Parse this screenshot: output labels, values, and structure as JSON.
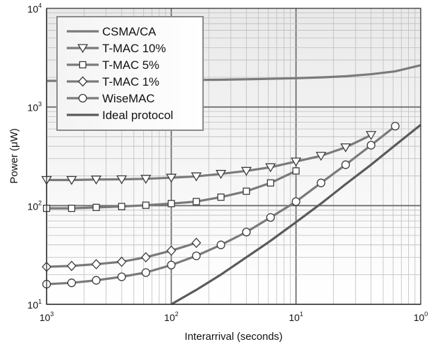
{
  "chart_data": {
    "type": "line",
    "xlabel": "Interarrival (seconds)",
    "ylabel": "Power (μW)",
    "x_scale": "log",
    "y_scale": "log",
    "x_reversed": true,
    "xlim": [
      1000,
      1
    ],
    "ylim": [
      10,
      10000
    ],
    "grid": true,
    "legend": "top-left",
    "x_ticks": [
      {
        "base": "10",
        "exp": "3",
        "value": 1000
      },
      {
        "base": "10",
        "exp": "2",
        "value": 100
      },
      {
        "base": "10",
        "exp": "1",
        "value": 10
      },
      {
        "base": "10",
        "exp": "0",
        "value": 1
      }
    ],
    "y_ticks": [
      {
        "base": "10",
        "exp": "4",
        "value": 10000
      },
      {
        "base": "10",
        "exp": "3",
        "value": 1000
      },
      {
        "base": "10",
        "exp": "2",
        "value": 100
      },
      {
        "base": "10",
        "exp": "1",
        "value": 10
      }
    ],
    "series": [
      {
        "name": "CSMA/CA",
        "marker": "none",
        "color": "#7a7a7a",
        "points": [
          [
            1000,
            1840
          ],
          [
            250,
            1850
          ],
          [
            100,
            1870
          ],
          [
            40,
            1890
          ],
          [
            20,
            1920
          ],
          [
            10,
            1960
          ],
          [
            6,
            2000
          ],
          [
            4,
            2050
          ],
          [
            2.5,
            2150
          ],
          [
            1.6,
            2300
          ],
          [
            1,
            2650
          ]
        ]
      },
      {
        "name": "T-MAC 10%",
        "marker": "triangle-down",
        "color": "#7a7a7a",
        "points": [
          [
            1000,
            182
          ],
          [
            630,
            182
          ],
          [
            400,
            184
          ],
          [
            250,
            185
          ],
          [
            160,
            187
          ],
          [
            100,
            192
          ],
          [
            63,
            198
          ],
          [
            40,
            210
          ],
          [
            25,
            225
          ],
          [
            16,
            245
          ],
          [
            10,
            280
          ],
          [
            6.3,
            320
          ],
          [
            4,
            390
          ],
          [
            2.5,
            520
          ]
        ]
      },
      {
        "name": "T-MAC 5%",
        "marker": "square",
        "color": "#7a7a7a",
        "points": [
          [
            1000,
            94
          ],
          [
            630,
            94
          ],
          [
            400,
            96
          ],
          [
            250,
            98
          ],
          [
            160,
            101
          ],
          [
            100,
            105
          ],
          [
            63,
            110
          ],
          [
            40,
            122
          ],
          [
            25,
            140
          ],
          [
            16,
            170
          ],
          [
            10,
            225
          ]
        ]
      },
      {
        "name": "T-MAC 1%",
        "marker": "diamond",
        "color": "#7a7a7a",
        "points": [
          [
            1000,
            24
          ],
          [
            630,
            24.5
          ],
          [
            400,
            25.5
          ],
          [
            250,
            27
          ],
          [
            160,
            30
          ],
          [
            100,
            35
          ],
          [
            63,
            42
          ]
        ]
      },
      {
        "name": "WiseMAC",
        "marker": "circle",
        "color": "#7a7a7a",
        "points": [
          [
            1000,
            16
          ],
          [
            630,
            16.5
          ],
          [
            400,
            17.5
          ],
          [
            250,
            19
          ],
          [
            160,
            21
          ],
          [
            100,
            25
          ],
          [
            63,
            31
          ],
          [
            40,
            40
          ],
          [
            25,
            54
          ],
          [
            16,
            76
          ],
          [
            10,
            110
          ],
          [
            6.3,
            170
          ],
          [
            4,
            260
          ],
          [
            2.5,
            410
          ],
          [
            1.6,
            640
          ]
        ]
      },
      {
        "name": "Ideal protocol",
        "marker": "none",
        "color": "#5a5a5a",
        "points": [
          [
            100,
            10
          ],
          [
            63,
            14
          ],
          [
            40,
            20
          ],
          [
            25,
            30
          ],
          [
            16,
            44
          ],
          [
            10,
            68
          ],
          [
            6.3,
            105
          ],
          [
            4,
            165
          ],
          [
            2.5,
            260
          ],
          [
            1.6,
            410
          ],
          [
            1,
            660
          ]
        ]
      }
    ]
  }
}
